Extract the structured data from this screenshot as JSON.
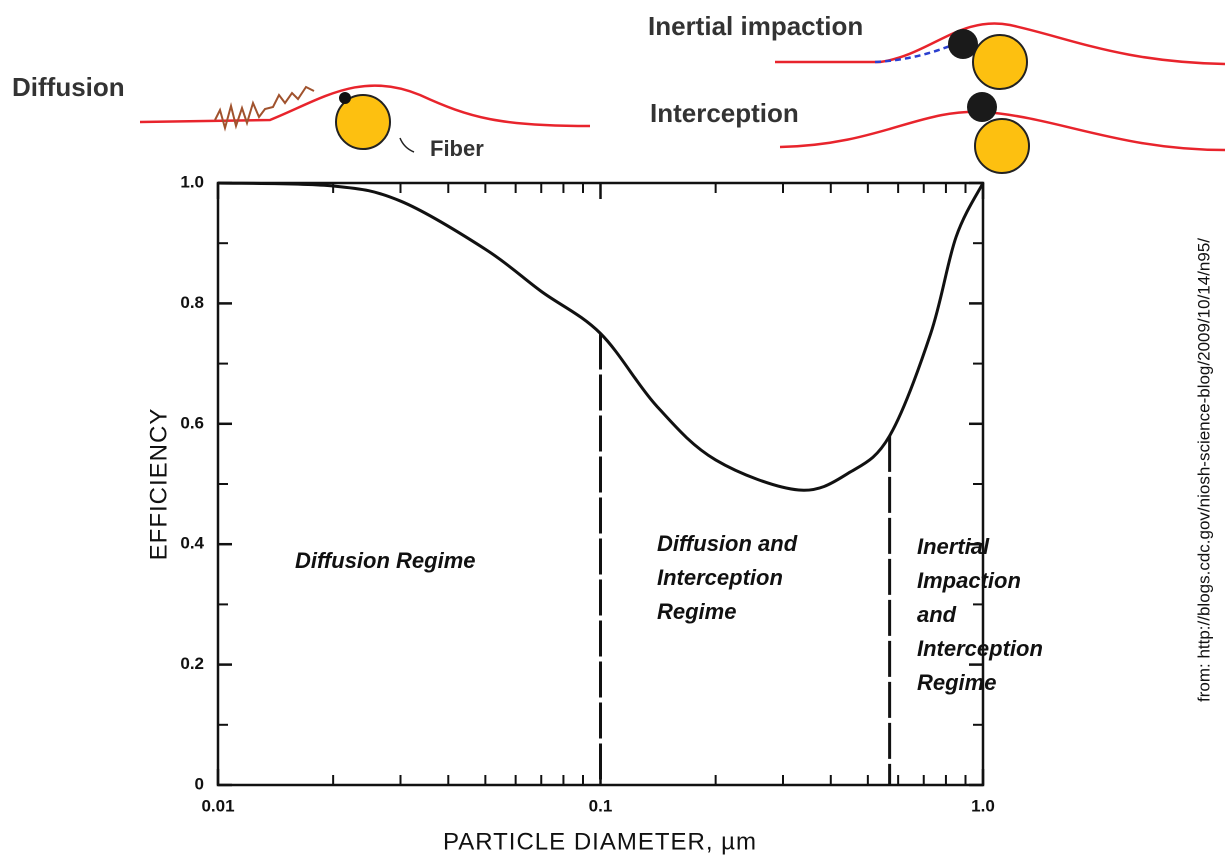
{
  "chart_data": {
    "type": "line",
    "illustration_labels": {
      "diffusion": "Diffusion",
      "fiber": "Fiber",
      "inertial": "Inertial impaction",
      "interception": "Interception"
    },
    "xlabel": "PARTICLE DIAMETER, µm",
    "ylabel": "EFFICIENCY",
    "source": "from: http://blogs.cdc.gov/niosh-science-blog/2009/10/14/n95/",
    "log_x": true,
    "xlim": [
      0.01,
      1.0
    ],
    "ylim": [
      0,
      1.0
    ],
    "xticks": [
      {
        "value": 0.01,
        "label": "0.01"
      },
      {
        "value": 0.1,
        "label": "0.1"
      },
      {
        "value": 1.0,
        "label": "1.0"
      }
    ],
    "yticks": [
      0,
      0.2,
      0.4,
      0.6,
      0.8,
      {
        "value": 1.0,
        "label": "1.0"
      }
    ],
    "x": [
      0.01,
      0.02,
      0.03,
      0.05,
      0.07,
      0.1,
      0.14,
      0.2,
      0.33,
      0.45,
      0.57,
      0.73,
      0.85,
      1.0
    ],
    "series": [
      {
        "color": "#111111",
        "values": [
          1.0,
          0.995,
          0.97,
          0.89,
          0.82,
          0.75,
          0.63,
          0.54,
          0.49,
          0.52,
          0.58,
          0.75,
          0.91,
          1.0
        ]
      }
    ],
    "boundaries": [
      0.1,
      0.57
    ],
    "regimes": [
      {
        "lines": [
          "Diffusion Regime"
        ]
      },
      {
        "lines": [
          "Diffusion and",
          "Interception",
          "Regime"
        ]
      },
      {
        "lines": [
          "Inertial",
          "Impaction",
          "and",
          "Interception",
          "Regime"
        ]
      }
    ]
  }
}
